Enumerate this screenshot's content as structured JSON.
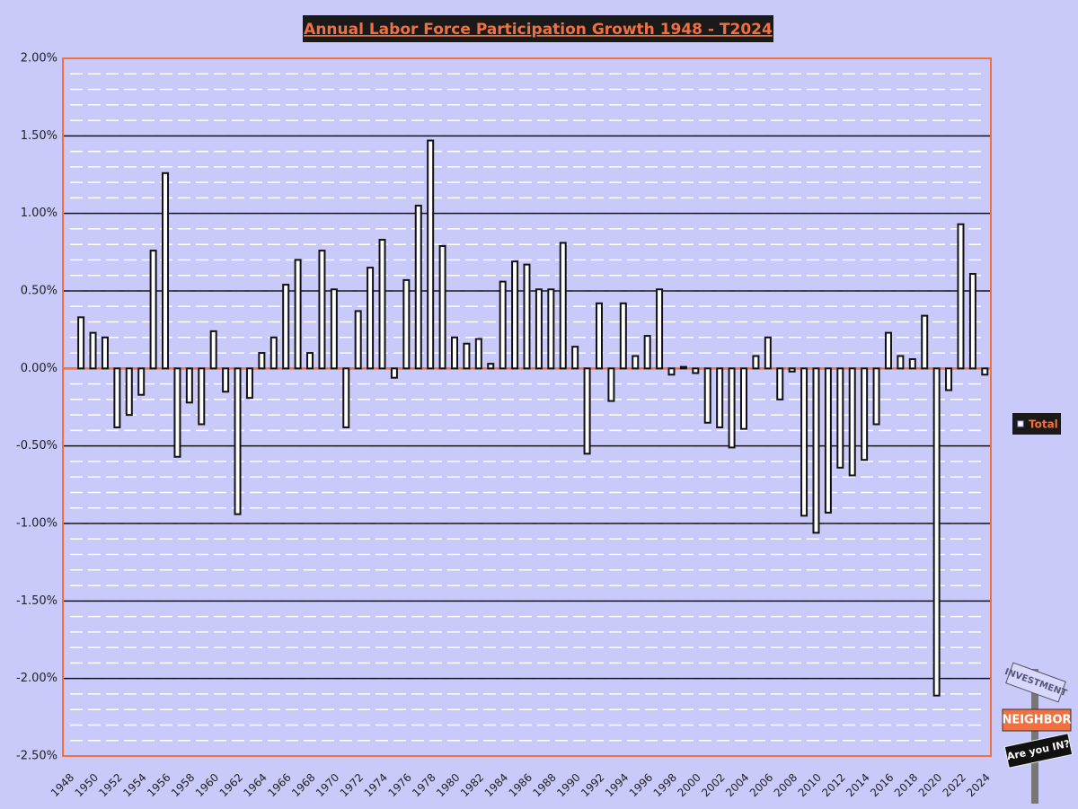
{
  "chart_data": {
    "type": "bar",
    "title": "Annual Labor Force Participation Growth 1948 - T2024",
    "categories": [
      "1948",
      null,
      "1950",
      null,
      "1952",
      null,
      "1954",
      null,
      "1956",
      null,
      "1958",
      null,
      "1960",
      null,
      "1962",
      null,
      "1964",
      null,
      "1966",
      null,
      "1968",
      null,
      "1970",
      null,
      "1972",
      null,
      "1974",
      null,
      "1976",
      null,
      "1978",
      null,
      "1980",
      null,
      "1982",
      null,
      "1984",
      null,
      "1986",
      null,
      "1988",
      null,
      "1990",
      null,
      "1992",
      null,
      "1994",
      null,
      "1996",
      null,
      "1998",
      null,
      "2000",
      null,
      "2002",
      null,
      "2004",
      null,
      "2006",
      null,
      "2008",
      null,
      "2010",
      null,
      "2012",
      null,
      "2014",
      null,
      "2016",
      null,
      "2018",
      null,
      "2020",
      null,
      "2022",
      null,
      "2024"
    ],
    "series": [
      {
        "name": "Total",
        "color": "#ffffff",
        "values": [
          null,
          0.33,
          0.23,
          0.2,
          -0.38,
          -0.3,
          -0.17,
          0.76,
          1.26,
          -0.57,
          -0.22,
          -0.36,
          0.24,
          -0.15,
          -0.94,
          -0.19,
          0.1,
          0.2,
          0.54,
          0.7,
          0.1,
          0.76,
          0.51,
          -0.38,
          0.37,
          0.65,
          0.83,
          -0.06,
          0.57,
          1.05,
          1.47,
          0.79,
          0.2,
          0.16,
          0.19,
          0.03,
          0.56,
          0.69,
          0.67,
          0.51,
          0.51,
          0.81,
          0.14,
          -0.55,
          0.42,
          -0.21,
          0.42,
          0.08,
          0.21,
          0.51,
          -0.04,
          0.01,
          -0.03,
          -0.35,
          -0.38,
          -0.51,
          -0.39,
          0.08,
          0.2,
          -0.2,
          -0.02,
          -0.95,
          -1.06,
          -0.93,
          -0.64,
          -0.69,
          -0.59,
          -0.36,
          0.23,
          0.08,
          0.06,
          0.34,
          -2.11,
          -0.14,
          0.93,
          0.61,
          -0.04
        ]
      }
    ],
    "ylim": [
      -2.5,
      2.0
    ],
    "yticks": [
      {
        "value": -2.5,
        "label": "-2.50%"
      },
      {
        "value": -2.0,
        "label": "-2.00%"
      },
      {
        "value": -1.5,
        "label": "-1.50%"
      },
      {
        "value": -1.0,
        "label": "-1.00%"
      },
      {
        "value": -0.5,
        "label": "-0.50%"
      },
      {
        "value": 0,
        "label": "0.00%"
      },
      {
        "value": 0.5,
        "label": "0.50%"
      },
      {
        "value": 1.0,
        "label": "1.00%"
      },
      {
        "value": 1.5,
        "label": "1.50%"
      },
      {
        "value": 2.0,
        "label": "2.00%"
      }
    ],
    "grid": true,
    "legend": "right"
  },
  "logo": {
    "top": "INVESTMENT",
    "middle": "NEIGHBOR",
    "bottom": "Are you IN?"
  }
}
